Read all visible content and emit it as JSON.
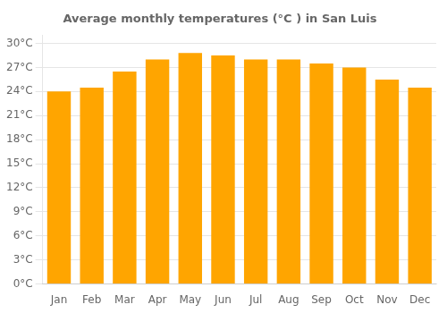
{
  "chart_data": {
    "type": "bar",
    "title": "Average monthly temperatures (°C ) in San Luis",
    "categories": [
      "Jan",
      "Feb",
      "Mar",
      "Apr",
      "May",
      "Jun",
      "Jul",
      "Aug",
      "Sep",
      "Oct",
      "Nov",
      "Dec"
    ],
    "values": [
      24.0,
      24.5,
      26.5,
      28.0,
      28.8,
      28.5,
      28.0,
      28.0,
      27.5,
      27.0,
      25.5,
      24.5
    ],
    "color": "#FFA500",
    "ylim": [
      0,
      31
    ],
    "yticks": [
      {
        "value": 0,
        "label": "0°C"
      },
      {
        "value": 3,
        "label": "3°C"
      },
      {
        "value": 6,
        "label": "6°C"
      },
      {
        "value": 9,
        "label": "9°C"
      },
      {
        "value": 12,
        "label": "12°C"
      },
      {
        "value": 15,
        "label": "15°C"
      },
      {
        "value": 18,
        "label": "18°C"
      },
      {
        "value": 21,
        "label": "21°C"
      },
      {
        "value": 24,
        "label": "24°C"
      },
      {
        "value": 27,
        "label": "27°C"
      },
      {
        "value": 30,
        "label": "30°C"
      }
    ],
    "grid": true
  }
}
